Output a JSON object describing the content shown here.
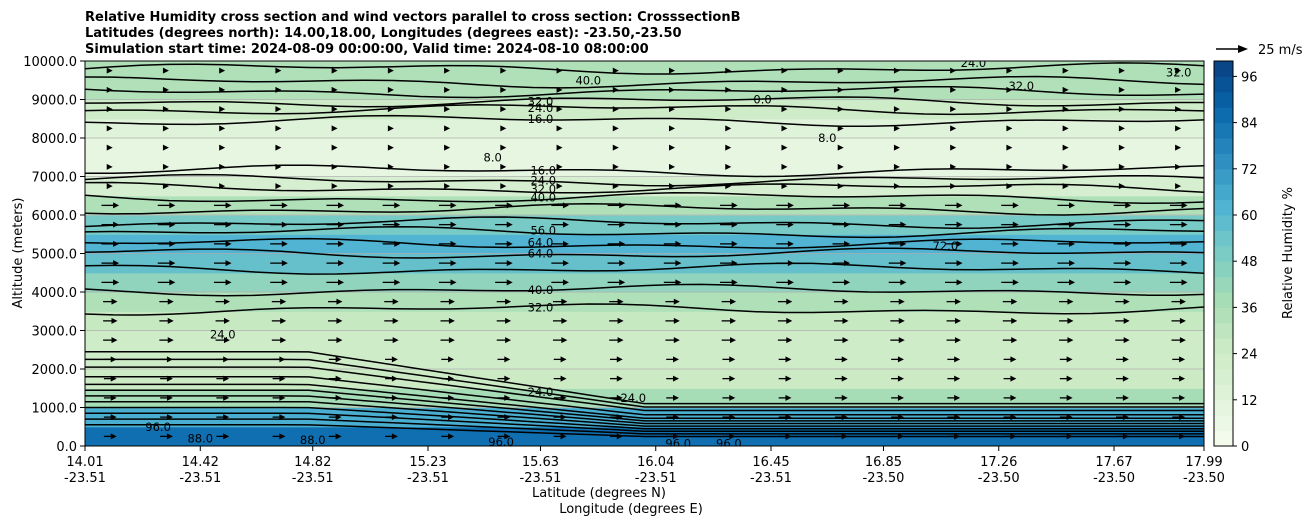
{
  "chart_data": {
    "type": "contour",
    "title_lines": [
      "Relative Humidity cross section and wind vectors parallel to cross section: CrosssectionB",
      "Latitudes (degrees north): 14.00,18.00, Longitudes (degrees east): -23.50,-23.50",
      "Simulation start time: 2024-08-09 00:00:00, Valid time: 2024-08-10 08:00:00"
    ],
    "ylabel": "Altitude (meters)",
    "xlabel_line1": "Latitude (degrees N)",
    "xlabel_line2": "Longitude (degrees E)",
    "ylim": [
      0,
      10000
    ],
    "y_ticks": [
      "0.0",
      "1000.0",
      "2000.0",
      "3000.0",
      "4000.0",
      "5000.0",
      "6000.0",
      "7000.0",
      "8000.0",
      "9000.0",
      "10000.0"
    ],
    "y_tick_values": [
      0,
      1000,
      2000,
      3000,
      4000,
      5000,
      6000,
      7000,
      8000,
      9000,
      10000
    ],
    "x_ticks": [
      {
        "lat": "14.01",
        "lon": "-23.51"
      },
      {
        "lat": "14.42",
        "lon": "-23.51"
      },
      {
        "lat": "14.82",
        "lon": "-23.51"
      },
      {
        "lat": "15.23",
        "lon": "-23.51"
      },
      {
        "lat": "15.63",
        "lon": "-23.51"
      },
      {
        "lat": "16.04",
        "lon": "-23.51"
      },
      {
        "lat": "16.45",
        "lon": "-23.51"
      },
      {
        "lat": "16.85",
        "lon": "-23.50"
      },
      {
        "lat": "17.26",
        "lon": "-23.50"
      },
      {
        "lat": "17.67",
        "lon": "-23.50"
      },
      {
        "lat": "17.99",
        "lon": "-23.50"
      }
    ],
    "grid": "horizontal",
    "colorbar": {
      "label": "Relative Humidity %",
      "ticks": [
        "0",
        "12",
        "24",
        "36",
        "48",
        "60",
        "72",
        "84",
        "96"
      ],
      "tick_values": [
        0,
        12,
        24,
        36,
        48,
        60,
        72,
        84,
        96
      ],
      "vmax": 100,
      "color_low": "#f7fcf0",
      "color_high": "#084081"
    },
    "quiver_key": {
      "label": "25 m/s"
    },
    "humidity_profile": [
      {
        "z": 0,
        "rh": 90
      },
      {
        "z": 500,
        "rh": 80
      },
      {
        "z": 1000,
        "rh": 48
      },
      {
        "z": 1500,
        "rh": 28
      },
      {
        "z": 2000,
        "rh": 22
      },
      {
        "z": 3000,
        "rh": 24
      },
      {
        "z": 3500,
        "rh": 30
      },
      {
        "z": 4000,
        "rh": 40
      },
      {
        "z": 4500,
        "rh": 48
      },
      {
        "z": 5000,
        "rh": 64
      },
      {
        "z": 5500,
        "rh": 60
      },
      {
        "z": 6000,
        "rh": 42
      },
      {
        "z": 6500,
        "rh": 28
      },
      {
        "z": 7000,
        "rh": 10
      },
      {
        "z": 7500,
        "rh": 8
      },
      {
        "z": 8000,
        "rh": 10
      },
      {
        "z": 8500,
        "rh": 16
      },
      {
        "z": 9000,
        "rh": 30
      },
      {
        "z": 9500,
        "rh": 38
      },
      {
        "z": 10000,
        "rh": 32
      }
    ],
    "contour_labels": [
      {
        "text": "40.0",
        "lat": 15.8,
        "z": 9500
      },
      {
        "text": "32.0",
        "lat": 15.63,
        "z": 8950
      },
      {
        "text": "24.0",
        "lat": 15.63,
        "z": 8780
      },
      {
        "text": "16.0",
        "lat": 15.63,
        "z": 8500
      },
      {
        "text": "16.0",
        "lat": 15.64,
        "z": 7150
      },
      {
        "text": "24.0",
        "lat": 15.64,
        "z": 6900
      },
      {
        "text": "32.0",
        "lat": 15.64,
        "z": 6680
      },
      {
        "text": "40.0",
        "lat": 15.64,
        "z": 6450
      },
      {
        "text": "56.0",
        "lat": 15.64,
        "z": 5600
      },
      {
        "text": "64.0",
        "lat": 15.63,
        "z": 5280
      },
      {
        "text": "64.0",
        "lat": 15.63,
        "z": 5000
      },
      {
        "text": "72.0",
        "lat": 17.07,
        "z": 5200
      },
      {
        "text": "40.0",
        "lat": 15.63,
        "z": 4050
      },
      {
        "text": "32.0",
        "lat": 15.63,
        "z": 3600
      },
      {
        "text": "24.0",
        "lat": 15.63,
        "z": 1400
      },
      {
        "text": "24.0",
        "lat": 15.96,
        "z": 1250
      },
      {
        "text": "96.0",
        "lat": 15.49,
        "z": 100
      },
      {
        "text": "96.0",
        "lat": 16.12,
        "z": 60
      },
      {
        "text": "96.0",
        "lat": 16.3,
        "z": 60
      },
      {
        "text": "8.0",
        "lat": 16.65,
        "z": 8000
      },
      {
        "text": "8.0",
        "lat": 15.46,
        "z": 7500
      },
      {
        "text": "0.0",
        "lat": 16.42,
        "z": 9000
      },
      {
        "text": "32.0",
        "lat": 17.34,
        "z": 9350
      },
      {
        "text": "32.0",
        "lat": 17.9,
        "z": 9700
      },
      {
        "text": "24.0",
        "lat": 17.17,
        "z": 9950
      },
      {
        "text": "24.0",
        "lat": 14.5,
        "z": 2900
      },
      {
        "text": "96.0",
        "lat": 14.27,
        "z": 500
      },
      {
        "text": "88.0",
        "lat": 14.42,
        "z": 200
      },
      {
        "text": "88.0",
        "lat": 14.82,
        "z": 150
      }
    ]
  }
}
